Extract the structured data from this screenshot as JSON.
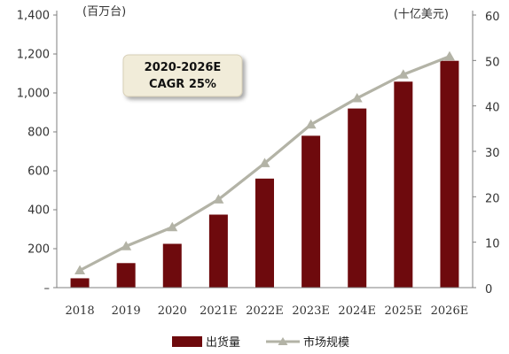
{
  "chart_data": {
    "type": "bar",
    "categories": [
      "2018",
      "2019",
      "2020",
      "2021E",
      "2022E",
      "2023E",
      "2024E",
      "2025E",
      "2026E"
    ],
    "series": [
      {
        "name": "出货量",
        "chart": "bar",
        "axis": "left",
        "color": "#6e0a0d",
        "values": [
          48,
          126,
          225,
          375,
          560,
          780,
          920,
          1058,
          1165
        ]
      },
      {
        "name": "市场规模",
        "chart": "line",
        "axis": "right",
        "color": "#b3b3a6",
        "values": [
          3.8,
          9.1,
          13.3,
          19.4,
          27.4,
          35.9,
          41.7,
          46.9,
          50.9
        ]
      }
    ],
    "left_axis": {
      "unit_label": "(百万台)",
      "ylim": [
        0,
        1400
      ],
      "ticks": [
        0,
        200,
        400,
        600,
        800,
        1000,
        1200,
        1400
      ],
      "tick_labels": [
        "–",
        "200",
        "400",
        "600",
        "800",
        "1,000",
        "1,200",
        "1,400"
      ]
    },
    "right_axis": {
      "unit_label": "(十亿美元)",
      "ylim": [
        0,
        60
      ],
      "ticks": [
        0,
        10,
        20,
        30,
        40,
        50,
        60
      ],
      "tick_labels": [
        "0",
        "10",
        "20",
        "30",
        "40",
        "50",
        "60"
      ]
    },
    "annotation": {
      "line1": "2020-2026E",
      "line2": "CAGR  25%"
    },
    "legend": {
      "placement": "bottom-center",
      "items": [
        "出货量",
        "市场规模"
      ]
    },
    "grid": false
  }
}
